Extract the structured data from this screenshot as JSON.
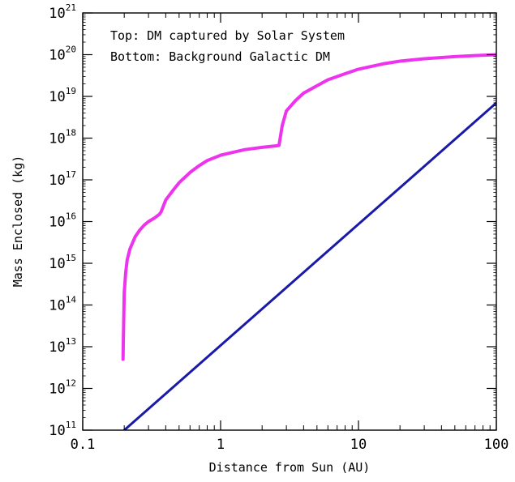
{
  "chart_data": {
    "type": "line",
    "title": "",
    "xlabel": "Distance from Sun (AU)",
    "ylabel": "Mass Enclosed (kg)",
    "x_scale": "log",
    "y_scale": "log",
    "xlim": [
      0.1,
      100
    ],
    "ylim": [
      100000000000.0,
      1e+21
    ],
    "grid": false,
    "x_ticks": [
      {
        "value": 0.1,
        "label": "0.1"
      },
      {
        "value": 1,
        "label": "1"
      },
      {
        "value": 10,
        "label": "10"
      },
      {
        "value": 100,
        "label": "100"
      }
    ],
    "y_ticks": [
      {
        "value": 100000000000.0,
        "base": "10",
        "exp": "11"
      },
      {
        "value": 1000000000000.0,
        "base": "10",
        "exp": "12"
      },
      {
        "value": 10000000000000.0,
        "base": "10",
        "exp": "13"
      },
      {
        "value": 100000000000000.0,
        "base": "10",
        "exp": "14"
      },
      {
        "value": 1000000000000000.0,
        "base": "10",
        "exp": "15"
      },
      {
        "value": 1e+16,
        "base": "10",
        "exp": "16"
      },
      {
        "value": 1e+17,
        "base": "10",
        "exp": "17"
      },
      {
        "value": 1e+18,
        "base": "10",
        "exp": "18"
      },
      {
        "value": 1e+19,
        "base": "10",
        "exp": "19"
      },
      {
        "value": 1e+20,
        "base": "10",
        "exp": "20"
      },
      {
        "value": 1e+21,
        "base": "10",
        "exp": "21"
      }
    ],
    "annotations": [
      "Top: DM captured by Solar System",
      "Bottom: Background Galactic DM"
    ],
    "series": [
      {
        "color": "#ee33ee",
        "x": [
          0.196,
          0.197,
          0.2,
          0.205,
          0.21,
          0.22,
          0.24,
          0.26,
          0.28,
          0.3,
          0.33,
          0.36,
          0.37,
          0.4,
          0.45,
          0.5,
          0.6,
          0.7,
          0.8,
          1.0,
          1.2,
          1.5,
          2.0,
          2.5,
          2.65,
          2.8,
          3.0,
          3.5,
          4.0,
          5.0,
          6.0,
          8.0,
          10,
          15,
          20,
          30,
          50,
          70,
          100
        ],
        "y": [
          5000000000000.0,
          15000000000000.0,
          200000000000000.0,
          600000000000000.0,
          1200000000000000.0,
          2200000000000000.0,
          4300000000000000.0,
          6300000000000000.0,
          8300000000000000.0,
          1e+16,
          1.2e+16,
          1.5e+16,
          1.7e+16,
          3.3e+16,
          5.5e+16,
          8.5e+16,
          1.5e+17,
          2.2e+17,
          2.9e+17,
          3.9e+17,
          4.5e+17,
          5.3e+17,
          6e+17,
          6.5e+17,
          6.7e+17,
          2e+18,
          4.5e+18,
          8e+18,
          1.2e+19,
          1.8e+19,
          2.5e+19,
          3.5e+19,
          4.5e+19,
          6e+19,
          7e+19,
          8e+19,
          9e+19,
          9.5e+19,
          1e+20
        ]
      },
      {
        "color": "#1a1aa8",
        "x": [
          0.2,
          100
        ],
        "y": [
          100000000000.0,
          7e+18
        ]
      }
    ]
  }
}
